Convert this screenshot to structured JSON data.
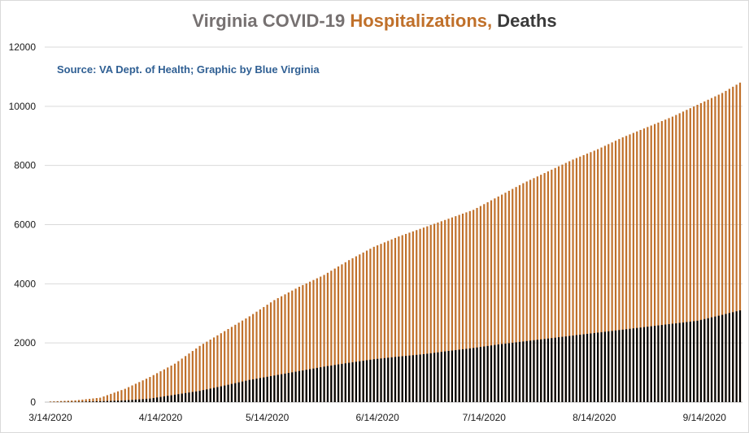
{
  "colors": {
    "title_gray": "#767171",
    "hospitalizations": "#c0702a",
    "deaths_title": "#3a3a3a",
    "deaths_bar": "#000000",
    "source": "#2f5f93",
    "grid": "#d9d9d9"
  },
  "chart_data": {
    "type": "bar",
    "title_parts": [
      "Virginia COVID-19 ",
      "Hospitalizations,",
      " Deaths"
    ],
    "source": "Source: VA Dept. of Health; Graphic by Blue Virginia",
    "x_start_date": "3/14/2020",
    "x_end_date": "9/24/2020",
    "x_tick_labels": [
      "3/14/2020",
      "4/14/2020",
      "5/14/2020",
      "6/14/2020",
      "7/14/2020",
      "8/14/2020",
      "9/14/2020"
    ],
    "y_ticks": [
      0,
      2000,
      4000,
      6000,
      8000,
      10000,
      12000
    ],
    "ylim": [
      0,
      12000
    ],
    "grid": "horizontal",
    "series": [
      {
        "name": "Hospitalizations",
        "points": [
          [
            "3/14/2020",
            20
          ],
          [
            "3/21/2020",
            60
          ],
          [
            "3/28/2020",
            150
          ],
          [
            "4/4/2020",
            450
          ],
          [
            "4/11/2020",
            850
          ],
          [
            "4/18/2020",
            1300
          ],
          [
            "4/25/2020",
            1900
          ],
          [
            "5/2/2020",
            2400
          ],
          [
            "5/9/2020",
            2900
          ],
          [
            "5/16/2020",
            3450
          ],
          [
            "5/23/2020",
            3900
          ],
          [
            "5/30/2020",
            4300
          ],
          [
            "6/6/2020",
            4800
          ],
          [
            "6/13/2020",
            5250
          ],
          [
            "6/20/2020",
            5600
          ],
          [
            "6/27/2020",
            5900
          ],
          [
            "7/4/2020",
            6200
          ],
          [
            "7/11/2020",
            6500
          ],
          [
            "7/18/2020",
            6950
          ],
          [
            "7/25/2020",
            7400
          ],
          [
            "8/1/2020",
            7800
          ],
          [
            "8/8/2020",
            8200
          ],
          [
            "8/15/2020",
            8550
          ],
          [
            "8/22/2020",
            8950
          ],
          [
            "8/29/2020",
            9300
          ],
          [
            "9/5/2020",
            9650
          ],
          [
            "9/12/2020",
            10050
          ],
          [
            "9/19/2020",
            10450
          ],
          [
            "9/24/2020",
            10800
          ]
        ]
      },
      {
        "name": "Deaths",
        "points": [
          [
            "3/14/2020",
            5
          ],
          [
            "3/21/2020",
            10
          ],
          [
            "3/28/2020",
            30
          ],
          [
            "4/4/2020",
            60
          ],
          [
            "4/11/2020",
            120
          ],
          [
            "4/18/2020",
            250
          ],
          [
            "4/25/2020",
            380
          ],
          [
            "5/2/2020",
            560
          ],
          [
            "5/9/2020",
            750
          ],
          [
            "5/16/2020",
            900
          ],
          [
            "5/23/2020",
            1050
          ],
          [
            "5/30/2020",
            1200
          ],
          [
            "6/6/2020",
            1330
          ],
          [
            "6/13/2020",
            1450
          ],
          [
            "6/20/2020",
            1540
          ],
          [
            "6/27/2020",
            1620
          ],
          [
            "7/4/2020",
            1730
          ],
          [
            "7/11/2020",
            1830
          ],
          [
            "7/18/2020",
            1950
          ],
          [
            "7/25/2020",
            2050
          ],
          [
            "8/1/2020",
            2150
          ],
          [
            "8/8/2020",
            2250
          ],
          [
            "8/15/2020",
            2350
          ],
          [
            "8/22/2020",
            2450
          ],
          [
            "8/29/2020",
            2550
          ],
          [
            "9/5/2020",
            2650
          ],
          [
            "9/12/2020",
            2750
          ],
          [
            "9/19/2020",
            2950
          ],
          [
            "9/24/2020",
            3100
          ]
        ]
      }
    ]
  }
}
